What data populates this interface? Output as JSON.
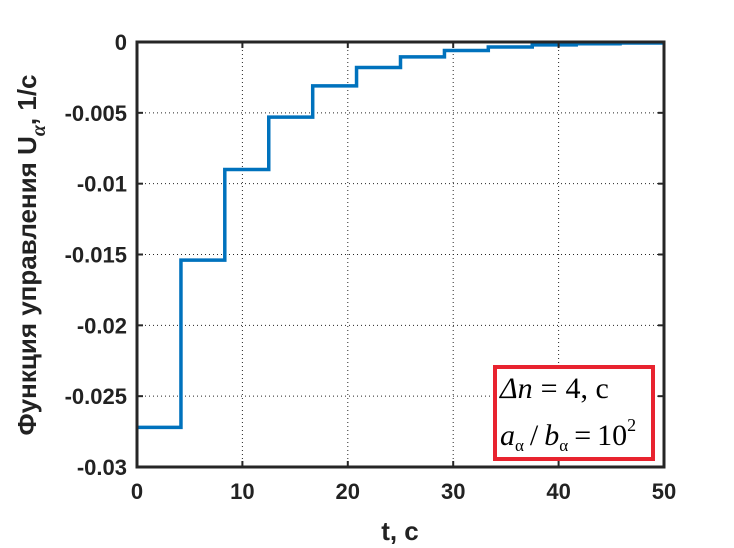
{
  "chart_data": {
    "type": "line",
    "step": true,
    "xlabel": "t, c",
    "ylabel": {
      "text": "Функция управления U",
      "subscript": "α",
      "suffix": ", 1/c"
    },
    "xlim": [
      0,
      50
    ],
    "ylim": [
      -0.03,
      0
    ],
    "xticks": [
      0,
      10,
      20,
      30,
      40,
      50
    ],
    "xtick_labels": [
      "0",
      "10",
      "20",
      "30",
      "40",
      "50"
    ],
    "yticks": [
      -0.03,
      -0.025,
      -0.02,
      -0.015,
      -0.01,
      -0.005,
      0
    ],
    "ytick_labels": [
      "-0.03",
      "-0.025",
      "-0.02",
      "-0.015",
      "-0.01",
      "-0.005",
      "0"
    ],
    "grid": true,
    "line_color": "#0072BD",
    "series": [
      {
        "x": [
          0,
          4.17,
          8.33,
          12.5,
          16.67,
          20.83,
          25,
          29.17,
          33.33,
          37.5,
          41.67,
          45.83,
          50
        ],
        "y": [
          -0.0272,
          -0.0154,
          -0.009,
          -0.0053,
          -0.0031,
          -0.0018,
          -0.00105,
          -0.0006,
          -0.00035,
          -0.0002,
          -0.00012,
          -7e-05,
          -5e-05
        ]
      }
    ],
    "annotation": {
      "border_color": "#E8232F",
      "line1": {
        "lhs": "Δn",
        "op": "=",
        "rhs": "4, c"
      },
      "line2": {
        "a": "a",
        "a_sub": "α",
        "div": "/",
        "b": "b",
        "b_sub": "α",
        "op": "=",
        "rhs_base": "10",
        "rhs_exp": "2"
      }
    }
  }
}
